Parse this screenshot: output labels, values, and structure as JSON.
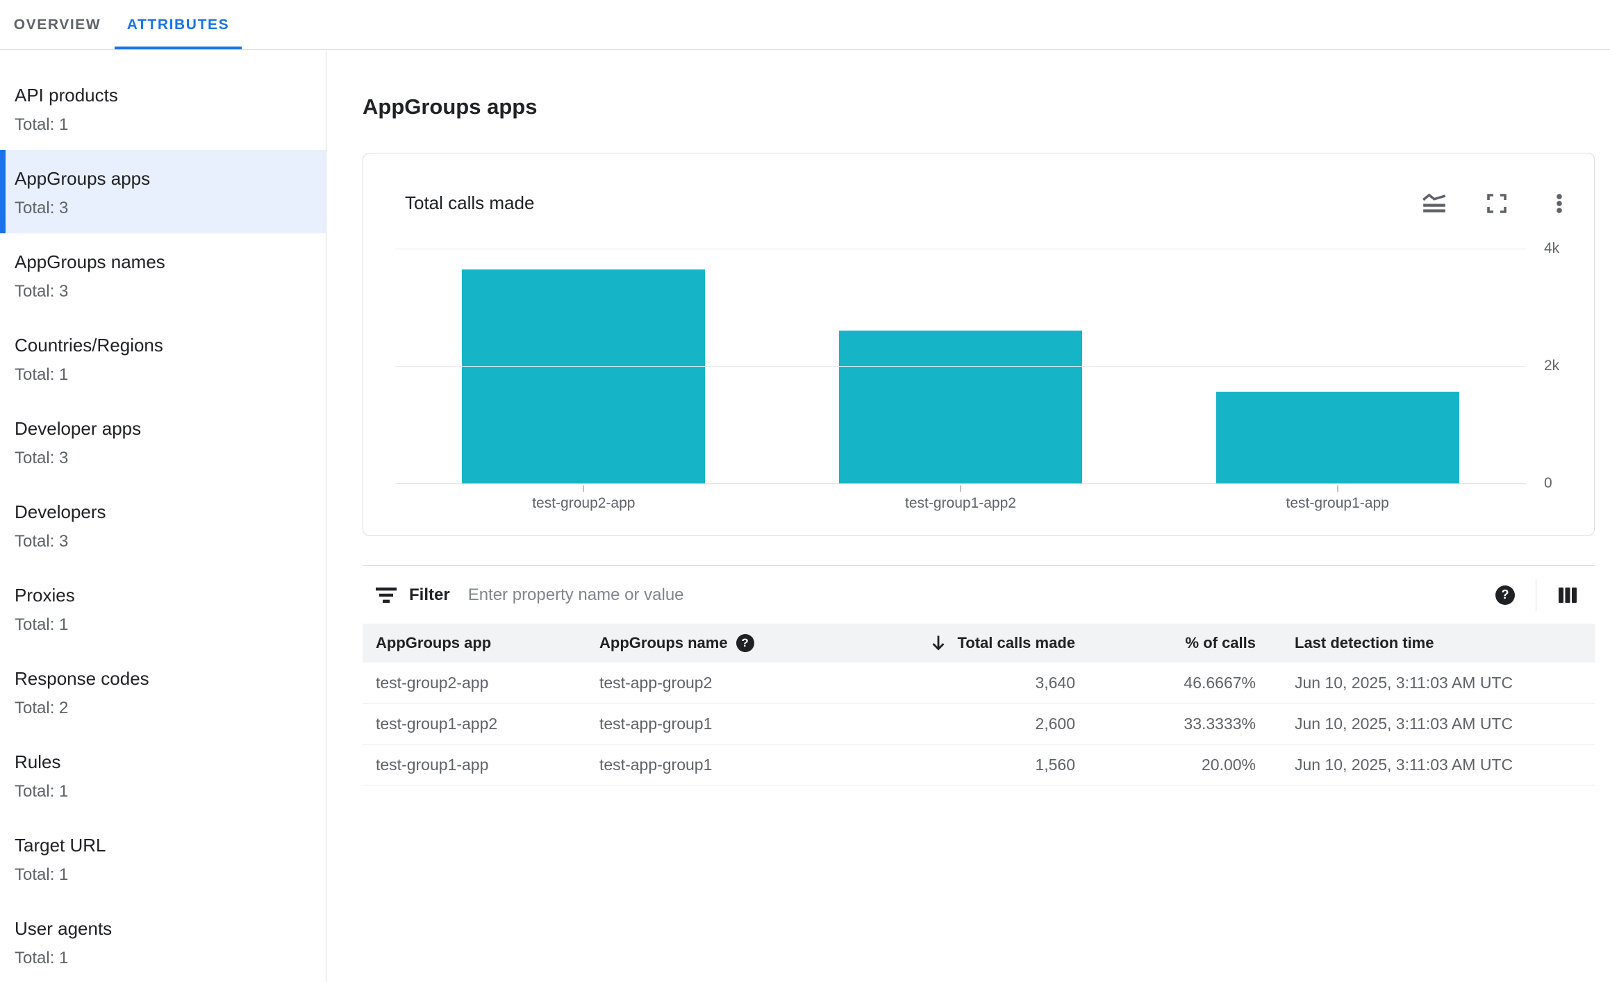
{
  "tabs": [
    {
      "label": "OVERVIEW",
      "active": false
    },
    {
      "label": "ATTRIBUTES",
      "active": true
    }
  ],
  "sidebar": {
    "items": [
      {
        "label": "API products",
        "total": "Total: 1",
        "selected": false
      },
      {
        "label": "AppGroups apps",
        "total": "Total: 3",
        "selected": true
      },
      {
        "label": "AppGroups names",
        "total": "Total: 3",
        "selected": false
      },
      {
        "label": "Countries/Regions",
        "total": "Total: 1",
        "selected": false
      },
      {
        "label": "Developer apps",
        "total": "Total: 3",
        "selected": false
      },
      {
        "label": "Developers",
        "total": "Total: 3",
        "selected": false
      },
      {
        "label": "Proxies",
        "total": "Total: 1",
        "selected": false
      },
      {
        "label": "Response codes",
        "total": "Total: 2",
        "selected": false
      },
      {
        "label": "Rules",
        "total": "Total: 1",
        "selected": false
      },
      {
        "label": "Target URL",
        "total": "Total: 1",
        "selected": false
      },
      {
        "label": "User agents",
        "total": "Total: 1",
        "selected": false
      }
    ]
  },
  "main": {
    "title": "AppGroups apps",
    "card": {
      "title": "Total calls made",
      "icons": [
        "area-chart",
        "fullscreen",
        "more-options"
      ]
    },
    "filter": {
      "label": "Filter",
      "placeholder": "Enter property name or value"
    },
    "table": {
      "columns": [
        "AppGroups app",
        "AppGroups name",
        "Total calls made",
        "% of calls",
        "Last detection time"
      ],
      "sort": {
        "column": "Total calls made",
        "direction": "desc"
      },
      "rows": [
        {
          "app": "test-group2-app",
          "name": "test-app-group2",
          "calls": "3,640",
          "pct": "46.6667%",
          "time": "Jun 10, 2025, 3:11:03 AM UTC"
        },
        {
          "app": "test-group1-app2",
          "name": "test-app-group1",
          "calls": "2,600",
          "pct": "33.3333%",
          "time": "Jun 10, 2025, 3:11:03 AM UTC"
        },
        {
          "app": "test-group1-app",
          "name": "test-app-group1",
          "calls": "1,560",
          "pct": "20.00%",
          "time": "Jun 10, 2025, 3:11:03 AM UTC"
        }
      ]
    }
  },
  "chart_data": {
    "type": "bar",
    "title": "Total calls made",
    "categories": [
      "test-group2-app",
      "test-group1-app2",
      "test-group1-app"
    ],
    "values": [
      3640,
      2600,
      1560
    ],
    "xlabel": "",
    "ylabel": "",
    "ylim": [
      0,
      4000
    ],
    "yticks": [
      {
        "value": 4000,
        "label": "4k"
      },
      {
        "value": 2000,
        "label": "2k"
      },
      {
        "value": 0,
        "label": "0"
      }
    ],
    "bar_color": "#15b5c7",
    "grid": "horizontal",
    "value_axis_side": "right",
    "legend": "none"
  },
  "colors": {
    "accent": "#1a73e8",
    "selected_item_bg": "#e8f0fe",
    "bar": "#15b5c7",
    "text": "#202124",
    "muted_text": "#5f6368",
    "border": "#dadce0",
    "gridline": "#e8eaed",
    "table_header_bg": "#f1f3f4"
  }
}
